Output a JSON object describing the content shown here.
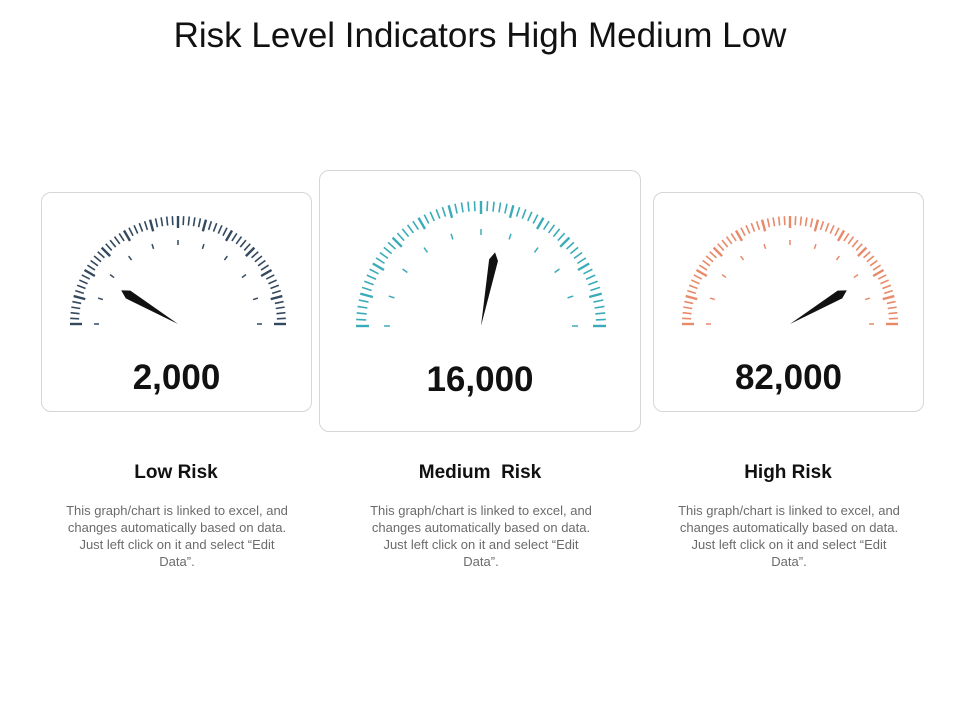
{
  "title": "Risk Level Indicators High Medium Low",
  "gauges": [
    {
      "value_label": "2,000",
      "label": "Low Risk",
      "description": "This graph/chart is linked to excel, and changes automatically based on data.  Just left click on it and select “Edit Data”.",
      "color": "#34495e",
      "level": 0.17
    },
    {
      "value_label": "16,000",
      "label": "Medium  Risk",
      "description": "This graph/chart is linked to excel, and changes automatically based on data.  Just left click on it and select “Edit Data”.",
      "color": "#3aacb9",
      "level": 0.56
    },
    {
      "value_label": "82,000",
      "label": "High Risk",
      "description": "This graph/chart is linked to excel, and changes automatically based on data.  Just left click on it and select “Edit Data”.",
      "color": "#e8896a",
      "level": 0.83
    }
  ],
  "chart_data": {
    "type": "gauge",
    "title": "Risk Level Indicators High Medium Low",
    "categories": [
      "Low Risk",
      "Medium  Risk",
      "High Risk"
    ],
    "values": [
      2000,
      16000,
      82000
    ]
  }
}
